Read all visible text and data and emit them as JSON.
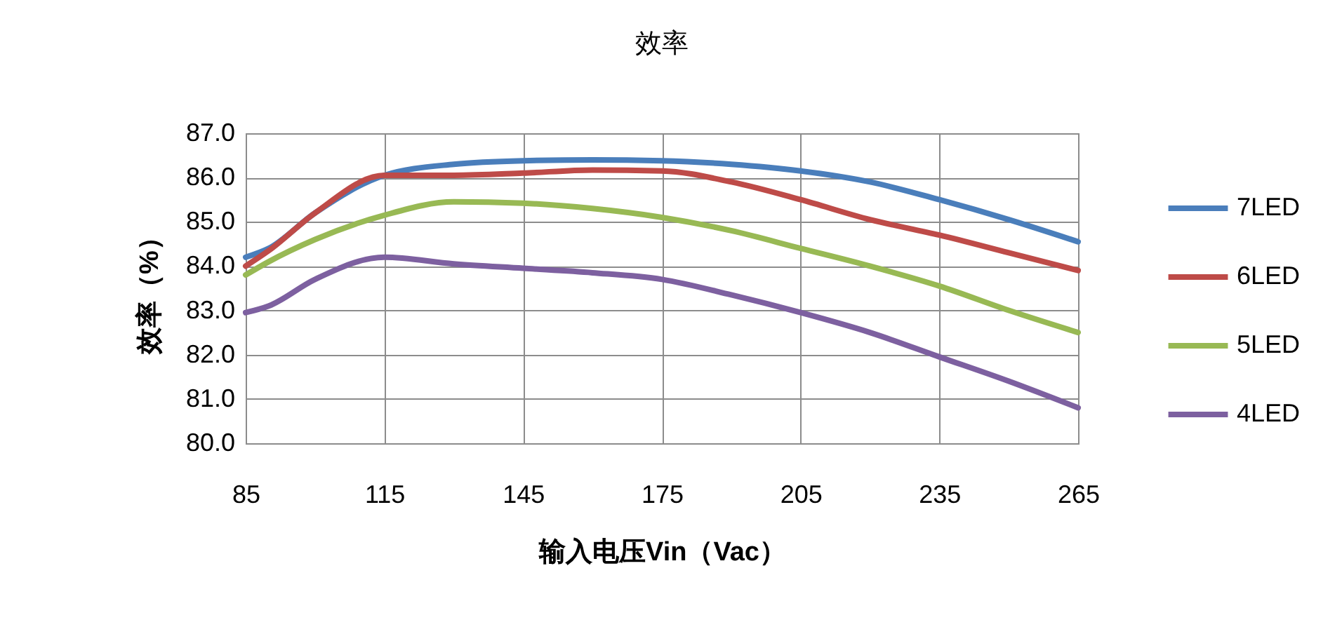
{
  "chart_data": {
    "type": "line",
    "title": "效率",
    "xlabel": "输入电压Vin（Vac）",
    "ylabel": "效率（%）",
    "x": [
      85,
      90,
      100,
      115,
      130,
      145,
      160,
      175,
      190,
      205,
      220,
      235,
      250,
      265
    ],
    "series": [
      {
        "name": "7LED",
        "color": "#4a7ebb",
        "values": [
          84.2,
          84.4,
          85.2,
          86.05,
          86.3,
          86.38,
          86.4,
          86.38,
          86.3,
          86.15,
          85.9,
          85.5,
          85.05,
          84.55
        ]
      },
      {
        "name": "6LED",
        "color": "#be4b48",
        "values": [
          84.0,
          84.35,
          85.2,
          86.05,
          86.05,
          86.1,
          86.17,
          86.15,
          85.9,
          85.5,
          85.05,
          84.7,
          84.3,
          83.9
        ]
      },
      {
        "name": "5LED",
        "color": "#98b954",
        "values": [
          83.8,
          84.1,
          84.6,
          85.15,
          85.45,
          85.42,
          85.3,
          85.1,
          84.8,
          84.4,
          84.0,
          83.55,
          83.0,
          82.5
        ]
      },
      {
        "name": "4LED",
        "color": "#7d60a0",
        "values": [
          82.95,
          83.1,
          83.7,
          84.2,
          84.05,
          83.95,
          83.85,
          83.7,
          83.35,
          82.95,
          82.5,
          81.95,
          81.4,
          80.8
        ]
      }
    ],
    "xlim": [
      85,
      265
    ],
    "xticks": [
      85,
      115,
      145,
      175,
      205,
      235,
      265
    ],
    "ylim": [
      80,
      87
    ],
    "yticks": [
      {
        "value": 80,
        "label": "80.0"
      },
      {
        "value": 81,
        "label": "81.0"
      },
      {
        "value": 82,
        "label": "82.0"
      },
      {
        "value": 83,
        "label": "83.0"
      },
      {
        "value": 84,
        "label": "84.0"
      },
      {
        "value": 85,
        "label": "85.0"
      },
      {
        "value": 86,
        "label": "86.0"
      },
      {
        "value": 87,
        "label": "87.0"
      }
    ],
    "grid": true,
    "legend": "right",
    "marker": "none",
    "line_style": "solid"
  }
}
